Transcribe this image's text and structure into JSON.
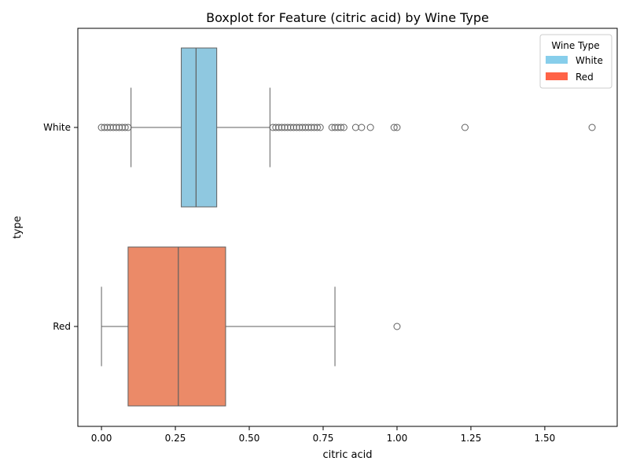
{
  "chart_data": {
    "type": "boxplot",
    "orientation": "horizontal",
    "title": "Boxplot for Feature (citric acid) by Wine Type",
    "xlabel": "citric acid",
    "ylabel": "type",
    "xlim": [
      -0.08,
      1.745
    ],
    "xticks": [
      0.0,
      0.25,
      0.5,
      0.75,
      1.0,
      1.25,
      1.5
    ],
    "xtick_labels": [
      "0.00",
      "0.25",
      "0.50",
      "0.75",
      "1.00",
      "1.25",
      "1.50"
    ],
    "grid": false,
    "legend": {
      "title": "Wine Type",
      "placement": "top-right",
      "entries": [
        {
          "label": "White",
          "color": "#87CEEB"
        },
        {
          "label": "Red",
          "color": "#FF6347"
        }
      ]
    },
    "series": [
      {
        "category": "White",
        "box_color": "#8FC8E0",
        "whisker_low": 0.1,
        "q1": 0.27,
        "median": 0.32,
        "q3": 0.39,
        "whisker_high": 0.57,
        "outliers": [
          0.0,
          0.01,
          0.02,
          0.03,
          0.04,
          0.05,
          0.06,
          0.07,
          0.08,
          0.09,
          0.58,
          0.59,
          0.6,
          0.61,
          0.62,
          0.63,
          0.64,
          0.65,
          0.66,
          0.67,
          0.68,
          0.69,
          0.7,
          0.71,
          0.72,
          0.73,
          0.74,
          0.78,
          0.79,
          0.8,
          0.81,
          0.82,
          0.86,
          0.88,
          0.91,
          0.99,
          1.0,
          1.23,
          1.66
        ]
      },
      {
        "category": "Red",
        "box_color": "#EB8A68",
        "whisker_low": 0.0,
        "q1": 0.09,
        "median": 0.26,
        "q3": 0.42,
        "whisker_high": 0.79,
        "outliers": [
          1.0
        ]
      }
    ]
  }
}
